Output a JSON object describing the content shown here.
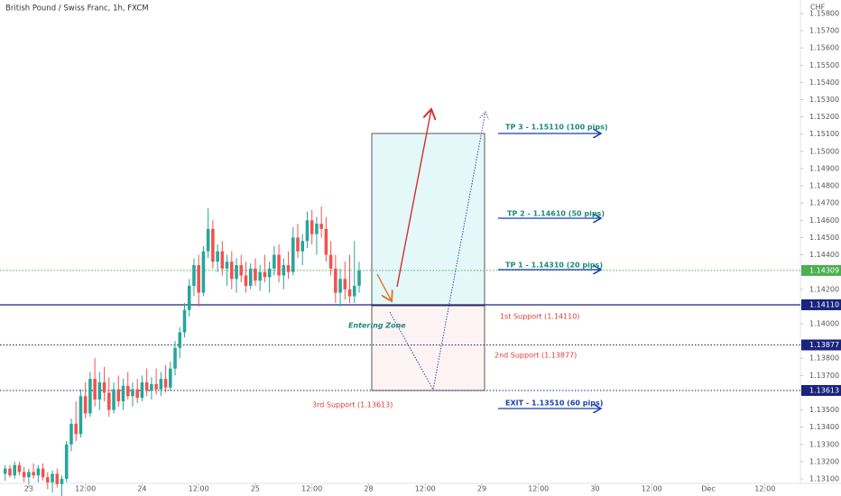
{
  "chart_data": {
    "type": "candlestick",
    "title": "British Pound / Swiss Franc, 1h, FXCM",
    "currency": "CHF",
    "x": [
      -5,
      -4,
      -3,
      -2,
      -1,
      0,
      1,
      2,
      3,
      4,
      5,
      6,
      7,
      8,
      9,
      10,
      11,
      12,
      13,
      14,
      15,
      16,
      17,
      18,
      19,
      20,
      21,
      22,
      23,
      24,
      25,
      26,
      27,
      28,
      29,
      30,
      31,
      32,
      33,
      34,
      35,
      36,
      37,
      38,
      39,
      40,
      41,
      42,
      43,
      44,
      45,
      46,
      47,
      48,
      49,
      50,
      51,
      52,
      53,
      54,
      55,
      56,
      57,
      58,
      59,
      60,
      61,
      62,
      63,
      64,
      65,
      66,
      67,
      68,
      69,
      70
    ],
    "open": [
      1.1313,
      1.1316,
      1.1312,
      1.1318,
      1.1314,
      1.1311,
      1.1314,
      1.1312,
      1.1316,
      1.1311,
      1.1308,
      1.1313,
      1.1307,
      1.131,
      1.133,
      1.1342,
      1.1336,
      1.1358,
      1.1348,
      1.1368,
      1.1356,
      1.1366,
      1.136,
      1.135,
      1.1362,
      1.1355,
      1.1364,
      1.1358,
      1.1362,
      1.1357,
      1.1366,
      1.1361,
      1.1365,
      1.1362,
      1.1368,
      1.1363,
      1.1374,
      1.1386,
      1.1395,
      1.1408,
      1.1422,
      1.1434,
      1.1418,
      1.1442,
      1.1455,
      1.1436,
      1.1442,
      1.1432,
      1.1436,
      1.1426,
      1.1434,
      1.1428,
      1.1422,
      1.1432,
      1.1425,
      1.143,
      1.1427,
      1.1432,
      1.144,
      1.1428,
      1.1434,
      1.143,
      1.145,
      1.1442,
      1.1448,
      1.146,
      1.1452,
      1.1458,
      1.1455,
      1.144,
      1.1432,
      1.1418,
      1.1426,
      1.142,
      1.1416,
      1.1422
    ],
    "high": [
      1.1318,
      1.1318,
      1.132,
      1.132,
      1.1317,
      1.1316,
      1.1319,
      1.1318,
      1.1319,
      1.1314,
      1.1315,
      1.1316,
      1.1312,
      1.1332,
      1.1345,
      1.1355,
      1.1362,
      1.1366,
      1.1372,
      1.138,
      1.1372,
      1.1375,
      1.1369,
      1.1366,
      1.137,
      1.1368,
      1.1372,
      1.1366,
      1.1368,
      1.137,
      1.1374,
      1.1369,
      1.1374,
      1.1372,
      1.1376,
      1.1378,
      1.139,
      1.1398,
      1.1412,
      1.1426,
      1.1438,
      1.144,
      1.1445,
      1.1467,
      1.146,
      1.1446,
      1.1448,
      1.144,
      1.1442,
      1.1438,
      1.144,
      1.1436,
      1.1435,
      1.1438,
      1.1434,
      1.144,
      1.1436,
      1.1445,
      1.1446,
      1.1438,
      1.1442,
      1.1456,
      1.1458,
      1.1452,
      1.1465,
      1.1466,
      1.1462,
      1.1468,
      1.1462,
      1.1448,
      1.144,
      1.1432,
      1.1436,
      1.144,
      1.1448,
      1.1436
    ],
    "low": [
      1.1309,
      1.1311,
      1.131,
      1.1312,
      1.1308,
      1.1305,
      1.131,
      1.1308,
      1.1309,
      1.1304,
      1.1302,
      1.1305,
      1.13,
      1.1308,
      1.1326,
      1.1332,
      1.1334,
      1.1345,
      1.1346,
      1.1352,
      1.135,
      1.1355,
      1.1346,
      1.1348,
      1.1352,
      1.135,
      1.1356,
      1.1352,
      1.1354,
      1.1355,
      1.1358,
      1.1356,
      1.1359,
      1.1358,
      1.136,
      1.1361,
      1.137,
      1.138,
      1.1392,
      1.1404,
      1.1416,
      1.141,
      1.1416,
      1.1438,
      1.1432,
      1.143,
      1.1428,
      1.1422,
      1.142,
      1.1418,
      1.1424,
      1.1418,
      1.142,
      1.1422,
      1.1419,
      1.1424,
      1.1418,
      1.1428,
      1.1424,
      1.142,
      1.1426,
      1.1428,
      1.1438,
      1.1434,
      1.1444,
      1.1446,
      1.144,
      1.145,
      1.1436,
      1.1428,
      1.1412,
      1.141,
      1.1414,
      1.1412,
      1.1412,
      1.1418
    ],
    "close": [
      1.1316,
      1.1312,
      1.1318,
      1.1314,
      1.1311,
      1.1314,
      1.1312,
      1.1316,
      1.1311,
      1.1308,
      1.1313,
      1.1307,
      1.131,
      1.133,
      1.1342,
      1.1336,
      1.1358,
      1.1348,
      1.1368,
      1.1356,
      1.1366,
      1.136,
      1.135,
      1.1362,
      1.1355,
      1.1364,
      1.1358,
      1.1362,
      1.1357,
      1.1366,
      1.1361,
      1.1365,
      1.1362,
      1.1368,
      1.1363,
      1.1374,
      1.1386,
      1.1395,
      1.1408,
      1.1422,
      1.1434,
      1.1418,
      1.1442,
      1.1455,
      1.1436,
      1.1442,
      1.1432,
      1.1436,
      1.1426,
      1.1434,
      1.1428,
      1.1422,
      1.1432,
      1.1425,
      1.143,
      1.1427,
      1.1432,
      1.144,
      1.1428,
      1.1434,
      1.143,
      1.145,
      1.1442,
      1.1448,
      1.146,
      1.1452,
      1.1458,
      1.1455,
      1.144,
      1.1432,
      1.1418,
      1.1426,
      1.142,
      1.1416,
      1.1422,
      1.14309
    ],
    "up_color": "#26a69a",
    "down_color": "#ef5350",
    "xlim": [
      -6.1,
      163.5
    ],
    "xticks": [
      {
        "value": 0,
        "label": "23"
      },
      {
        "value": 12,
        "label": "12:00"
      },
      {
        "value": 24,
        "label": "24"
      },
      {
        "value": 36,
        "label": "12:00"
      },
      {
        "value": 48,
        "label": "25"
      },
      {
        "value": 60,
        "label": "12:00"
      },
      {
        "value": 72,
        "label": "28"
      },
      {
        "value": 84,
        "label": "12:00"
      },
      {
        "value": 96,
        "label": "29"
      },
      {
        "value": 108,
        "label": "12:00"
      },
      {
        "value": 120,
        "label": "30"
      },
      {
        "value": 132,
        "label": "12:00"
      },
      {
        "value": 144,
        "label": "Dec"
      },
      {
        "value": 156,
        "label": "12:00"
      }
    ],
    "ylim": [
      1.13074,
      1.15878
    ],
    "yticks": [
      {
        "value": 1.131,
        "label": "1.13100"
      },
      {
        "value": 1.132,
        "label": "1.13200"
      },
      {
        "value": 1.133,
        "label": "1.13300"
      },
      {
        "value": 1.134,
        "label": "1.13400"
      },
      {
        "value": 1.135,
        "label": "1.13500"
      },
      {
        "value": 1.137,
        "label": "1.13700"
      },
      {
        "value": 1.138,
        "label": "1.13800"
      },
      {
        "value": 1.14,
        "label": "1.14000"
      },
      {
        "value": 1.142,
        "label": "1.14200"
      },
      {
        "value": 1.144,
        "label": "1.14400"
      },
      {
        "value": 1.145,
        "label": "1.14500"
      },
      {
        "value": 1.146,
        "label": "1.14600"
      },
      {
        "value": 1.147,
        "label": "1.14700"
      },
      {
        "value": 1.148,
        "label": "1.14800"
      },
      {
        "value": 1.149,
        "label": "1.14900"
      },
      {
        "value": 1.15,
        "label": "1.15000"
      },
      {
        "value": 1.151,
        "label": "1.15100"
      },
      {
        "value": 1.152,
        "label": "1.15200"
      },
      {
        "value": 1.153,
        "label": "1.15300"
      },
      {
        "value": 1.154,
        "label": "1.15400"
      },
      {
        "value": 1.155,
        "label": "1.15500"
      },
      {
        "value": 1.156,
        "label": "1.15600"
      },
      {
        "value": 1.157,
        "label": "1.15700"
      },
      {
        "value": 1.158,
        "label": "1.15800"
      }
    ],
    "levels": [
      {
        "value": 1.14309,
        "label": "1.14309",
        "color": "#4caf50",
        "style": "dotted"
      },
      {
        "value": 1.1411,
        "label": "1.14110",
        "color": "#1a237e",
        "style": "solid"
      },
      {
        "value": 1.13877,
        "label": "1.13877",
        "color": "#1a237e",
        "style": "dotted"
      },
      {
        "value": 1.13613,
        "label": "1.13613",
        "color": "#1a237e",
        "style": "dotted"
      }
    ],
    "annotations": [
      "TP 3 - 1.15110 (100 pips)",
      "TP 2 - 1.14610 (50 pips)",
      "TP 1 - 1.14310 (20 pips)",
      "EXIT - 1.13510 (60 pips)",
      "Entering Zone",
      "1st Support  (1.14110)",
      "2nd Support (1.13877)",
      "3rd Support (1.13613)"
    ]
  }
}
